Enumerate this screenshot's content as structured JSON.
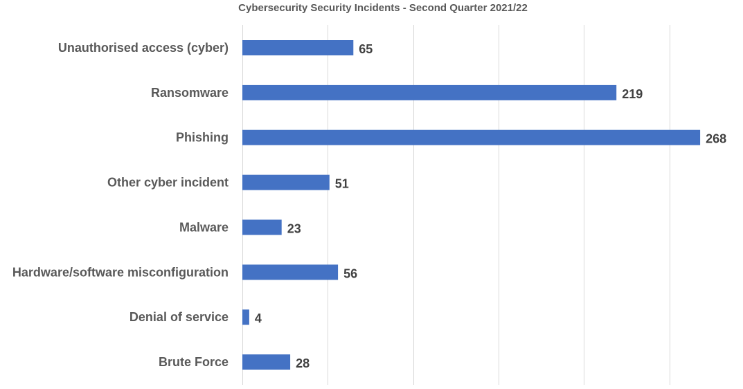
{
  "chart_data": {
    "type": "bar",
    "orientation": "horizontal",
    "title": "Cybersecurity Security Incidents - Second Quarter 2021/22",
    "xlabel": "",
    "ylabel": "",
    "categories": [
      "Unauthorised access (cyber)",
      "Ransomware",
      "Phishing",
      "Other cyber incident",
      "Malware",
      "Hardware/software misconfiguration",
      "Denial of service",
      "Brute Force"
    ],
    "values": [
      65,
      219,
      268,
      51,
      23,
      56,
      4,
      28
    ],
    "xlim": [
      0,
      300
    ],
    "grid": true,
    "legend": "none",
    "bar_color": "#4472c4"
  }
}
